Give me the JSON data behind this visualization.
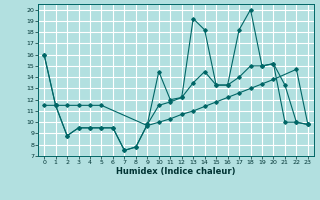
{
  "title": "",
  "xlabel": "Humidex (Indice chaleur)",
  "ylabel": "",
  "background_color": "#b2e0e0",
  "grid_color": "#ffffff",
  "line_color": "#006666",
  "xlim": [
    -0.5,
    23.5
  ],
  "ylim": [
    7,
    20.5
  ],
  "yticks": [
    7,
    8,
    9,
    10,
    11,
    12,
    13,
    14,
    15,
    16,
    17,
    18,
    19,
    20
  ],
  "xticks": [
    0,
    1,
    2,
    3,
    4,
    5,
    6,
    7,
    8,
    9,
    10,
    11,
    12,
    13,
    14,
    15,
    16,
    17,
    18,
    19,
    20,
    21,
    22,
    23
  ],
  "series1_x": [
    0,
    1,
    2,
    3,
    4,
    5,
    6,
    7,
    8,
    9,
    10,
    11,
    12,
    13,
    14,
    15,
    16,
    17,
    18,
    19,
    20,
    21,
    22,
    23
  ],
  "series1_y": [
    16,
    11.5,
    8.8,
    9.5,
    9.5,
    9.5,
    9.5,
    7.5,
    7.8,
    9.8,
    14.5,
    12.0,
    12.2,
    19.2,
    18.2,
    13.3,
    13.3,
    18.2,
    20.0,
    15.0,
    15.2,
    13.3,
    10.0,
    9.8
  ],
  "series2_x": [
    0,
    1,
    2,
    3,
    4,
    5,
    6,
    7,
    8,
    9,
    10,
    11,
    12,
    13,
    14,
    15,
    16,
    17,
    18,
    19,
    20,
    21,
    22,
    23
  ],
  "series2_y": [
    16,
    11.5,
    8.8,
    9.5,
    9.5,
    9.5,
    9.5,
    7.5,
    7.8,
    9.8,
    11.5,
    11.8,
    12.2,
    13.5,
    14.5,
    13.3,
    13.3,
    14.0,
    15.0,
    15.0,
    15.2,
    10.0,
    10.0,
    9.8
  ],
  "series3_x": [
    0,
    1,
    2,
    3,
    4,
    5,
    9,
    10,
    11,
    12,
    13,
    14,
    15,
    16,
    17,
    18,
    19,
    20,
    22,
    23
  ],
  "series3_y": [
    11.5,
    11.5,
    11.5,
    11.5,
    11.5,
    11.5,
    9.7,
    10.0,
    10.3,
    10.7,
    11.0,
    11.4,
    11.8,
    12.2,
    12.6,
    13.0,
    13.4,
    13.8,
    14.7,
    9.8
  ]
}
